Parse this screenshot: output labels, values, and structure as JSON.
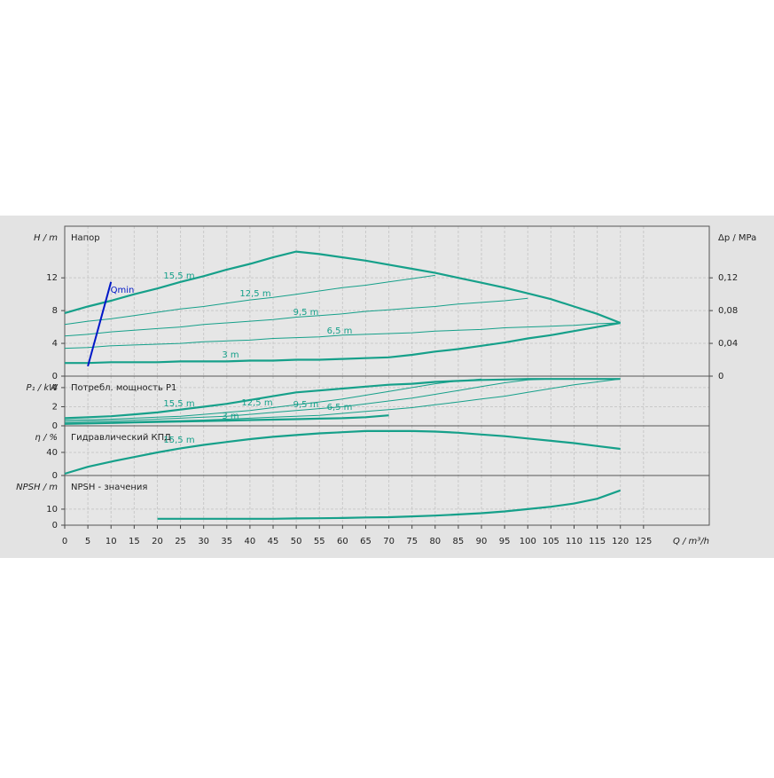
{
  "chart_data": [
    {
      "type": "line",
      "title": "Напор",
      "ylabel": "H / m",
      "y2label": "Δp / MPa",
      "x": [
        0,
        5,
        10,
        15,
        20,
        25,
        30,
        35,
        40,
        45,
        50,
        55,
        60,
        65,
        70,
        75,
        80,
        85,
        90,
        95,
        100,
        105,
        110,
        115,
        120
      ],
      "ylim": [
        0,
        18.3
      ],
      "yticks": [
        0,
        4,
        8,
        12
      ],
      "y2lim": [
        0,
        0.183
      ],
      "y2ticks": [
        0,
        {
          "value": 0.04,
          "label": "0,04"
        },
        {
          "value": 0.08,
          "label": "0,08"
        },
        {
          "value": 0.12,
          "label": "0,12"
        }
      ],
      "grid": true,
      "series": [
        {
          "name": "15,5 m",
          "color": "#16a08a",
          "values": [
            7.7,
            8.5,
            9.2,
            10.0,
            10.7,
            11.5,
            12.2,
            13.0,
            13.7,
            14.5,
            15.2,
            14.9,
            14.5,
            14.1,
            13.6,
            13.1,
            12.6,
            12.0,
            11.4,
            10.8,
            10.1,
            9.4,
            8.5,
            7.6,
            6.5
          ]
        },
        {
          "name": "12,5 m",
          "color": "#16a08a",
          "values": [
            6.3,
            6.7,
            7.0,
            7.4,
            7.8,
            8.2,
            8.5,
            8.9,
            9.3,
            9.6,
            10.0,
            10.4,
            10.8,
            11.1,
            11.5,
            11.9,
            12.3,
            null,
            null,
            null,
            null,
            null,
            null,
            null,
            null
          ]
        },
        {
          "name": "9,5 m",
          "color": "#16a08a",
          "values": [
            4.9,
            5.1,
            5.4,
            5.6,
            5.8,
            6.0,
            6.3,
            6.5,
            6.7,
            6.9,
            7.2,
            7.4,
            7.6,
            7.9,
            8.1,
            8.3,
            8.5,
            8.8,
            9.0,
            9.2,
            9.5,
            null,
            null,
            null,
            null
          ]
        },
        {
          "name": "6,5 m",
          "color": "#16a08a",
          "values": [
            3.4,
            3.5,
            3.7,
            3.8,
            3.9,
            4.0,
            4.2,
            4.3,
            4.4,
            4.6,
            4.7,
            4.8,
            5.0,
            5.1,
            5.2,
            5.3,
            5.5,
            5.6,
            5.7,
            5.9,
            6.0,
            6.1,
            6.2,
            6.4,
            6.5
          ]
        },
        {
          "name": "3 m",
          "color": "#16a08a",
          "values": [
            1.6,
            1.6,
            1.7,
            1.7,
            1.7,
            1.8,
            1.8,
            1.8,
            1.9,
            1.9,
            2.0,
            2.0,
            2.1,
            2.2,
            2.3,
            2.6,
            3.0,
            3.3,
            3.7,
            4.1,
            4.6,
            5.0,
            5.5,
            6.0,
            6.5
          ]
        },
        {
          "name": "Qmin",
          "color": "#0018c8",
          "values": [
            null,
            1.2,
            11.5,
            null,
            null,
            null,
            null,
            null,
            null,
            null,
            null,
            null,
            null,
            null,
            null,
            null,
            null,
            null,
            null,
            null,
            null,
            null,
            null,
            null,
            null
          ]
        }
      ]
    },
    {
      "type": "line",
      "title": "Потребл. мощность P1",
      "ylabel": "P₁ / kW",
      "x": [
        0,
        5,
        10,
        15,
        20,
        25,
        30,
        35,
        40,
        45,
        50,
        55,
        60,
        65,
        70,
        75,
        80,
        85,
        90,
        95,
        100,
        105,
        110,
        115,
        120
      ],
      "ylim": [
        0,
        5.2
      ],
      "yticks": [
        0,
        2,
        4
      ],
      "grid": true,
      "series": [
        {
          "name": "15,5 m",
          "color": "#16a08a",
          "values": [
            0.8,
            0.9,
            1.0,
            1.2,
            1.4,
            1.7,
            2.0,
            2.3,
            2.7,
            3.1,
            3.5,
            3.7,
            3.9,
            4.1,
            4.3,
            4.4,
            4.6,
            4.7,
            4.8,
            4.85,
            4.9,
            4.9,
            4.9,
            4.9,
            4.9
          ]
        },
        {
          "name": "12,5 m",
          "color": "#16a08a",
          "values": [
            0.6,
            0.65,
            0.7,
            0.8,
            0.9,
            1.0,
            1.2,
            1.4,
            1.6,
            1.9,
            2.2,
            2.5,
            2.8,
            3.2,
            3.6,
            4.0,
            4.4,
            4.7,
            4.9,
            null,
            null,
            null,
            null,
            null,
            null
          ]
        },
        {
          "name": "9,5 m",
          "color": "#16a08a",
          "values": [
            0.45,
            0.5,
            0.55,
            0.6,
            0.7,
            0.8,
            0.9,
            1.0,
            1.2,
            1.4,
            1.6,
            1.8,
            2.0,
            2.3,
            2.6,
            2.9,
            3.3,
            3.7,
            4.1,
            4.5,
            4.8,
            4.9,
            null,
            null,
            null
          ]
        },
        {
          "name": "6,5 m",
          "color": "#16a08a",
          "values": [
            0.3,
            0.35,
            0.4,
            0.45,
            0.5,
            0.55,
            0.6,
            0.7,
            0.8,
            0.9,
            1.0,
            1.1,
            1.3,
            1.5,
            1.7,
            1.9,
            2.2,
            2.5,
            2.8,
            3.1,
            3.5,
            3.9,
            4.3,
            4.6,
            4.9
          ]
        },
        {
          "name": "3 m",
          "color": "#16a08a",
          "values": [
            0.2,
            0.25,
            0.3,
            0.35,
            0.4,
            0.45,
            0.5,
            0.55,
            0.6,
            0.65,
            0.7,
            0.75,
            0.8,
            0.9,
            1.1,
            null,
            null,
            null,
            null,
            null,
            null,
            null,
            null,
            null,
            null
          ]
        }
      ]
    },
    {
      "type": "line",
      "title": "Гидравлический КПД",
      "ylabel": "η / %",
      "x": [
        0,
        5,
        10,
        15,
        20,
        25,
        30,
        35,
        40,
        45,
        50,
        55,
        60,
        65,
        70,
        75,
        80,
        85,
        90,
        95,
        100,
        105,
        110,
        115,
        120
      ],
      "ylim": [
        0,
        86
      ],
      "yticks": [
        0,
        40
      ],
      "grid": true,
      "series": [
        {
          "name": "15,5 m",
          "color": "#16a08a",
          "values": [
            3,
            15,
            24,
            32,
            40,
            47,
            53,
            58,
            63,
            67,
            70,
            73,
            75,
            77,
            77,
            77,
            76,
            74,
            71,
            68,
            64,
            60,
            56,
            51,
            46
          ]
        }
      ]
    },
    {
      "type": "line",
      "title": "NPSH - значения",
      "ylabel": "NPSH / m",
      "xlabel": "Q / m³/h",
      "x": [
        0,
        5,
        10,
        15,
        20,
        25,
        30,
        35,
        40,
        45,
        50,
        55,
        60,
        65,
        70,
        75,
        80,
        85,
        90,
        95,
        100,
        105,
        110,
        115,
        120
      ],
      "xlim": [
        0,
        139.2
      ],
      "xticks": [
        0,
        5,
        10,
        15,
        20,
        25,
        30,
        35,
        40,
        45,
        50,
        55,
        60,
        65,
        70,
        75,
        80,
        85,
        90,
        95,
        100,
        105,
        110,
        115,
        120,
        125
      ],
      "ylim": [
        0,
        31
      ],
      "yticks": [
        0,
        10
      ],
      "grid": true,
      "series": [
        {
          "color": "#16a08a",
          "values": [
            null,
            null,
            null,
            null,
            4,
            4,
            4,
            4,
            4,
            4,
            4.2,
            4.3,
            4.5,
            4.8,
            5.0,
            5.5,
            6.0,
            6.7,
            7.5,
            8.6,
            10,
            11.5,
            13.5,
            16.5,
            21.7
          ]
        }
      ]
    }
  ]
}
